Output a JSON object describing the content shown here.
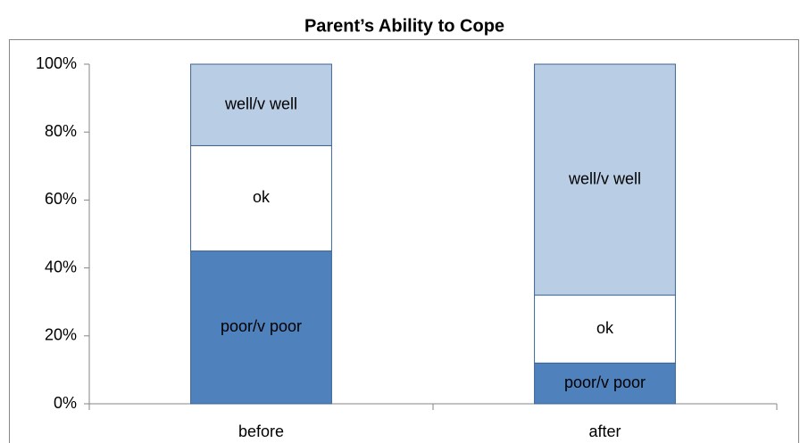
{
  "chart_data": {
    "type": "stacked-bar",
    "title": "Parent’s Ability to Cope",
    "categories": [
      "before",
      "after"
    ],
    "series": [
      {
        "name": "poor/v poor",
        "color": "#4f81bd",
        "values": [
          45,
          12
        ]
      },
      {
        "name": "ok",
        "color": "#ffffff",
        "values": [
          31,
          20
        ]
      },
      {
        "name": "well/v well",
        "color": "#b9cde5",
        "values": [
          24,
          68
        ]
      }
    ],
    "ylim": [
      0,
      100
    ],
    "yticks": [
      {
        "value": 0,
        "label": "0%"
      },
      {
        "value": 20,
        "label": "20%"
      },
      {
        "value": 40,
        "label": "40%"
      },
      {
        "value": 60,
        "label": "60%"
      },
      {
        "value": 80,
        "label": "80%"
      },
      {
        "value": 100,
        "label": "100%"
      }
    ]
  }
}
